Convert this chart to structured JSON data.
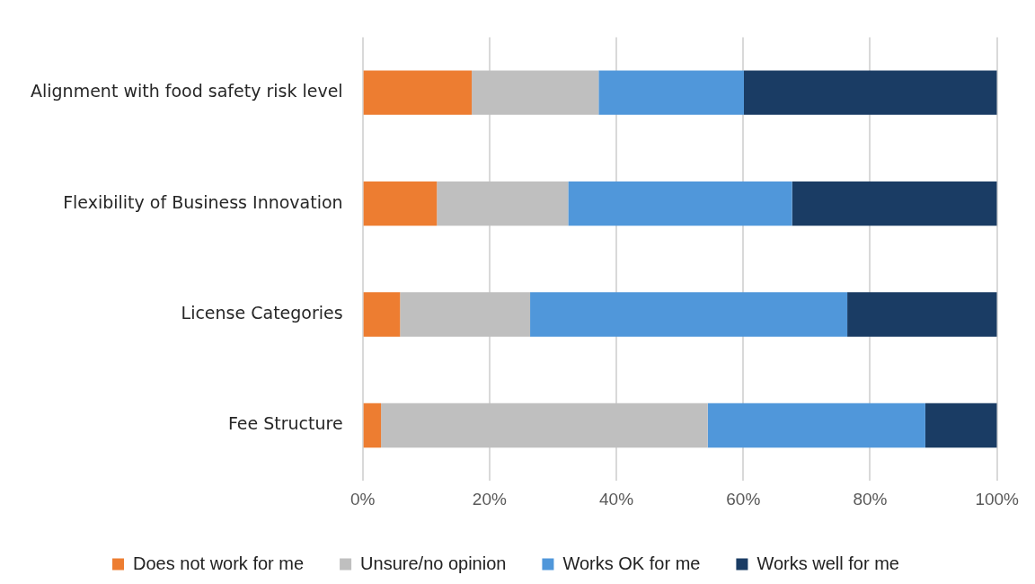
{
  "chart_data": {
    "type": "bar",
    "orientation": "horizontal",
    "stacked": true,
    "categories": [
      "Alignment with food safety risk level",
      "Flexibility of Business Innovation",
      "License Categories",
      "Fee Structure"
    ],
    "series": [
      {
        "name": "Does not work for me",
        "color": "#ed7d31",
        "values": [
          17.2,
          11.7,
          5.9,
          2.9
        ]
      },
      {
        "name": "Unsure/no opinion",
        "color": "#bfbfbf",
        "values": [
          20.0,
          20.7,
          20.5,
          51.5
        ]
      },
      {
        "name": "Works OK for me",
        "color": "#5097da",
        "values": [
          22.9,
          35.3,
          50.0,
          34.3
        ]
      },
      {
        "name": "Works well for me",
        "color": "#1a3c64",
        "values": [
          39.9,
          32.3,
          23.6,
          11.3
        ]
      }
    ],
    "xlim": [
      0,
      100
    ],
    "xticks": [
      {
        "value": 0,
        "label": "0%"
      },
      {
        "value": 20,
        "label": "20%"
      },
      {
        "value": 40,
        "label": "40%"
      },
      {
        "value": 60,
        "label": "60%"
      },
      {
        "value": 80,
        "label": "80%"
      },
      {
        "value": 100,
        "label": "100%"
      }
    ],
    "grid": "x",
    "legend": "bottom"
  }
}
